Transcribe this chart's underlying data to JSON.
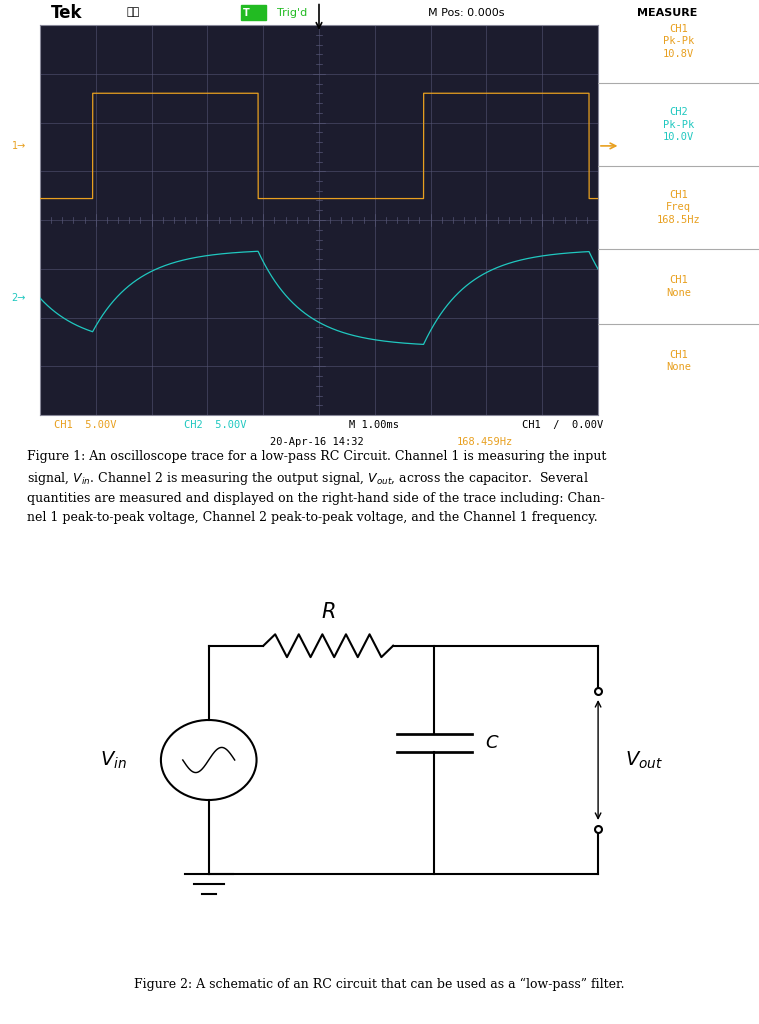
{
  "fig_width": 7.59,
  "fig_height": 10.24,
  "osc_bg": "#1c1c2e",
  "osc_grid_color": "#555575",
  "ch1_color": "#e8a020",
  "ch2_color": "#20c8c0",
  "tek_green": "#22bb22",
  "white": "#ffffff",
  "measure_bg": "#e8e8e8",
  "header_bg": "#e8e8e8",
  "page_bg": "#ffffff",
  "title_text": "Tek",
  "trig_text": "Trig'd",
  "mpos_text": "M Pos: 0.000s",
  "measure_text": "MEASURE",
  "bottom_ch1": "CH1  5.00V",
  "bottom_ch2": "CH2  5.00V",
  "bottom_m": "M 1.00ms",
  "bottom_ch1r": "CH1  /  0.00V",
  "bottom_date": "20-Apr-16 14:32",
  "bottom_freq": "168.459Hz",
  "fig2_caption": "Figure 2: A schematic of an RC circuit that can be used as a “low-pass” filter."
}
